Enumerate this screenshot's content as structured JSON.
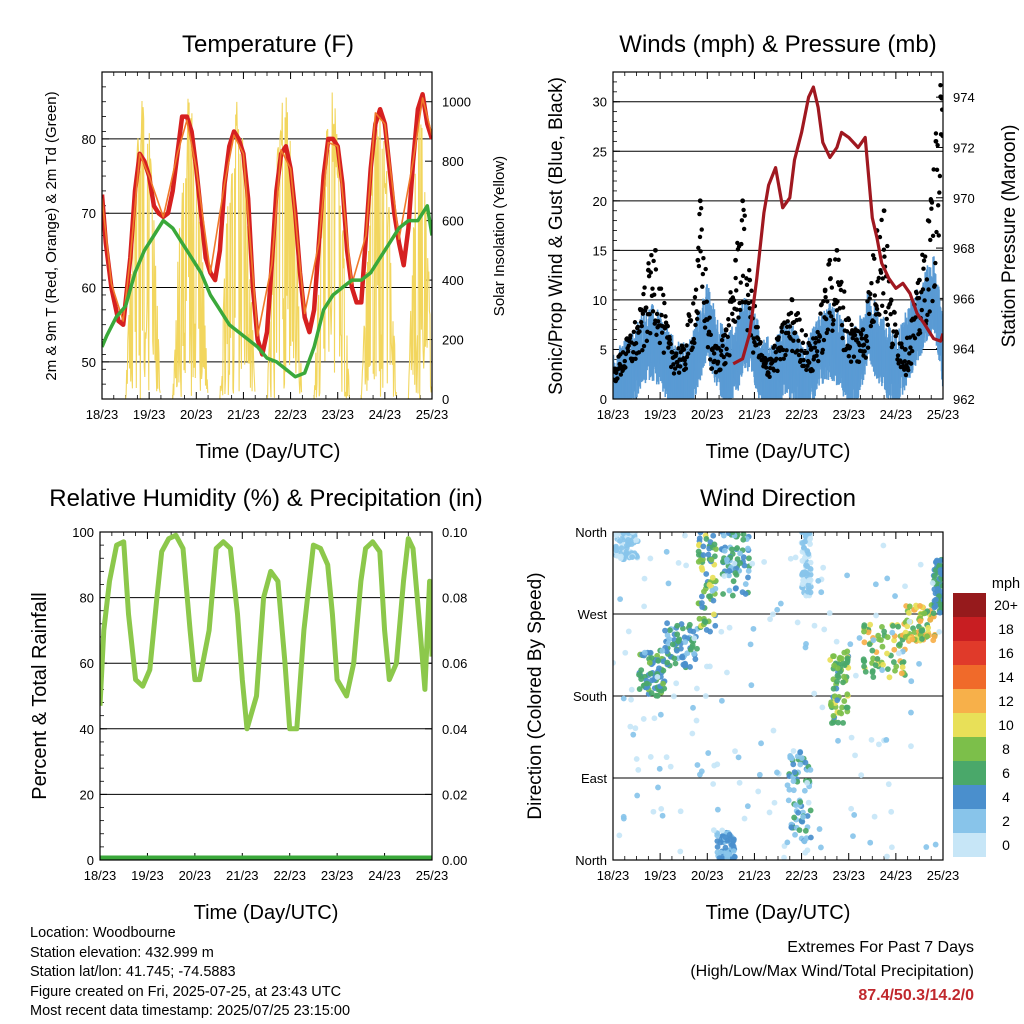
{
  "panels": {
    "temperature": {
      "title": "Temperature (F)",
      "xlabel": "Time (Day/UTC)",
      "ylabel_left": "2m & 9m T (Red, Orange) & 2m Td (Green)",
      "ylabel_right": "Solar Insolation (Yellow)"
    },
    "winds": {
      "title": "Winds (mph) & Pressure (mb)",
      "xlabel": "Time (Day/UTC)",
      "ylabel_left": "Sonic/Prop Wind & Gust (Blue, Black)",
      "ylabel_right": "Station Pressure (Maroon)"
    },
    "humidity": {
      "title": "Relative Humidity (%) & Precipitation (in)",
      "xlabel": "Time (Day/UTC)",
      "ylabel_left": "Percent & Total Rainfall"
    },
    "direction": {
      "title": "Wind Direction",
      "xlabel": "Time (Day/UTC)",
      "ylabel_left": "Direction (Colored By Speed)",
      "legend_title": "mph"
    }
  },
  "footer": {
    "location": "Location: Woodbourne",
    "elevation": "Station elevation: 432.999 m",
    "latlon": "Station lat/lon: 41.745; -74.5883",
    "created": "Figure created on Fri, 2025-07-25, at 23:43 UTC",
    "recent": "Most recent data timestamp: 2025/07/25 23:15:00",
    "extremes_title": "Extremes For Past 7 Days",
    "extremes_subtitle": "(High/Low/Max Wind/Total Precipitation)",
    "extremes_values": "87.4/50.3/14.2/0"
  },
  "chart_data": [
    {
      "id": "temperature",
      "type": "line",
      "x_ticks": [
        "18/23",
        "19/23",
        "20/23",
        "21/23",
        "22/23",
        "23/23",
        "24/23",
        "25/23"
      ],
      "xlim": [
        0,
        7
      ],
      "ylim_left": [
        45,
        89
      ],
      "yticks_left": [
        50,
        60,
        70,
        80
      ],
      "ylim_right": [
        0,
        1100
      ],
      "yticks_right": [
        0,
        200,
        400,
        600,
        800,
        1000
      ],
      "grid": true,
      "series": [
        {
          "axis": "left",
          "color": "#d62020",
          "width": 4.5,
          "x": [
            0,
            0.08,
            0.2,
            0.35,
            0.45,
            0.6,
            0.7,
            0.8,
            0.9,
            1.0,
            1.1,
            1.2,
            1.3,
            1.4,
            1.5,
            1.6,
            1.7,
            1.8,
            1.9,
            2.0,
            2.1,
            2.2,
            2.3,
            2.4,
            2.5,
            2.6,
            2.7,
            2.8,
            2.9,
            3.0,
            3.1,
            3.2,
            3.3,
            3.4,
            3.5,
            3.6,
            3.7,
            3.8,
            3.9,
            4.0,
            4.1,
            4.2,
            4.3,
            4.4,
            4.5,
            4.6,
            4.7,
            4.8,
            4.9,
            5.0,
            5.1,
            5.2,
            5.3,
            5.4,
            5.5,
            5.6,
            5.7,
            5.8,
            5.9,
            6.0,
            6.1,
            6.2,
            6.3,
            6.4,
            6.5,
            6.6,
            6.7,
            6.8,
            6.9,
            7.0
          ],
          "y": [
            72.5,
            66,
            60,
            55.5,
            55,
            64,
            73,
            78,
            77,
            75,
            71,
            70,
            69.5,
            70,
            73,
            78,
            83,
            83,
            81,
            76,
            70,
            64,
            62,
            61,
            65,
            74,
            79,
            81,
            80,
            78,
            72,
            60,
            53,
            51,
            54,
            63,
            73,
            78,
            79,
            76,
            70,
            62,
            56,
            54,
            57,
            66,
            75,
            80,
            80,
            79,
            74,
            65,
            60,
            58,
            58,
            67,
            76,
            82,
            84,
            82,
            76,
            70,
            66,
            63,
            68,
            77,
            84,
            86,
            82,
            80
          ]
        },
        {
          "axis": "left",
          "color": "#f07a2a",
          "width": 1.6,
          "x": [
            0,
            0.2,
            0.45,
            0.6,
            0.8,
            1.0,
            1.3,
            1.6,
            1.8,
            2.0,
            2.3,
            2.6,
            2.8,
            3.0,
            3.3,
            3.6,
            3.8,
            4.0,
            4.3,
            4.6,
            4.8,
            5.0,
            5.3,
            5.6,
            5.8,
            6.0,
            6.3,
            6.6,
            6.8,
            7.0
          ],
          "y": [
            72,
            60.5,
            55.5,
            64,
            78,
            75,
            69.5,
            78,
            82.5,
            76,
            62,
            74,
            80.5,
            78,
            53.5,
            63,
            78.5,
            76,
            56.5,
            66,
            79.5,
            79,
            60.5,
            67,
            83.5,
            82,
            66.5,
            77,
            85.5,
            80.5
          ]
        },
        {
          "axis": "left",
          "color": "#3aa83a",
          "width": 3.5,
          "x": [
            0,
            0.1,
            0.3,
            0.5,
            0.7,
            0.9,
            1.1,
            1.3,
            1.5,
            1.7,
            1.9,
            2.1,
            2.3,
            2.5,
            2.7,
            2.9,
            3.1,
            3.3,
            3.5,
            3.7,
            3.9,
            4.1,
            4.3,
            4.5,
            4.7,
            4.9,
            5.1,
            5.3,
            5.5,
            5.7,
            5.9,
            6.1,
            6.3,
            6.5,
            6.7,
            6.9,
            7.0
          ],
          "y": [
            52,
            53.5,
            56,
            57.5,
            62,
            65,
            67,
            69,
            68,
            66,
            64,
            62,
            59,
            57,
            55,
            54,
            53,
            52,
            50.5,
            50,
            49,
            48,
            48.5,
            52,
            57,
            59,
            60,
            61,
            61,
            62,
            64,
            66,
            68,
            69,
            69,
            71,
            67
          ]
        },
        {
          "axis": "right",
          "color": "#f2d65e",
          "width": 1.1,
          "kind": "insolation",
          "x": [
            0.55,
            1.25,
            0.75,
            1.1,
            1.55,
            2.25,
            1.75,
            2.05,
            2.55,
            3.2,
            2.75,
            3.05,
            3.55,
            4.25,
            3.75,
            4.1,
            4.55,
            5.25,
            4.75,
            5.1,
            5.55,
            6.25,
            5.75,
            6.1,
            6.55,
            7.0,
            6.75,
            6.95
          ],
          "y": [
            0,
            0,
            900,
            780,
            0,
            0,
            1020,
            960,
            0,
            0,
            1000,
            920,
            0,
            0,
            980,
            840,
            0,
            0,
            1050,
            700,
            0,
            0,
            950,
            820,
            0,
            0,
            1020,
            960
          ]
        }
      ]
    },
    {
      "id": "winds",
      "type": "scatter",
      "x_ticks": [
        "18/23",
        "19/23",
        "20/23",
        "21/23",
        "22/23",
        "23/23",
        "24/23",
        "25/23"
      ],
      "xlim": [
        0,
        7
      ],
      "ylim_left": [
        0,
        33
      ],
      "yticks_left": [
        0,
        5,
        10,
        15,
        20,
        25,
        30
      ],
      "ylim_right": [
        962,
        975
      ],
      "yticks_right": [
        962,
        964,
        966,
        968,
        970,
        972,
        974
      ],
      "grid": true,
      "series": [
        {
          "axis": "left",
          "color": "#000000",
          "kind": "gust-points",
          "x": [
            0,
            0.3,
            0.6,
            0.75,
            0.9,
            1.2,
            1.5,
            1.8,
            1.85,
            2.1,
            2.4,
            2.6,
            2.75,
            2.9,
            3.2,
            3.5,
            3.8,
            4.2,
            4.5,
            4.6,
            4.75,
            5.0,
            5.3,
            5.6,
            5.75,
            5.9,
            6.2,
            6.5,
            6.75,
            6.85,
            6.95
          ],
          "y": [
            3,
            6,
            9,
            13,
            15,
            6,
            5,
            14,
            20,
            5,
            7,
            14,
            20,
            12,
            4,
            6,
            10,
            5,
            11,
            14,
            15,
            8,
            7,
            17,
            19,
            10,
            5,
            12,
            20,
            26,
            30.5
          ]
        },
        {
          "axis": "left",
          "color": "#5a9bd4",
          "kind": "wind-band",
          "x": [
            0,
            0.2,
            0.4,
            0.6,
            0.8,
            1.0,
            1.2,
            1.4,
            1.6,
            1.8,
            2.0,
            2.2,
            2.4,
            2.6,
            2.8,
            3.0,
            3.2,
            3.4,
            3.6,
            3.8,
            4.0,
            4.2,
            4.4,
            4.6,
            4.8,
            5.0,
            5.2,
            5.4,
            5.6,
            5.8,
            6.0,
            6.2,
            6.4,
            6.6,
            6.8,
            7.0
          ],
          "y": [
            2,
            3,
            4,
            6,
            7,
            6,
            4,
            3,
            3,
            6,
            9,
            6,
            4,
            5,
            8,
            6,
            4,
            3,
            5,
            5,
            3,
            4,
            6,
            7,
            6,
            4,
            5,
            8,
            7,
            5,
            4,
            6,
            8,
            10,
            12,
            6
          ]
        },
        {
          "axis": "right",
          "color": "#a01820",
          "width": 3.2,
          "name": "pressure",
          "x": [
            2.55,
            2.75,
            2.9,
            3.05,
            3.2,
            3.3,
            3.45,
            3.6,
            3.75,
            3.85,
            4.0,
            4.15,
            4.25,
            4.35,
            4.45,
            4.6,
            4.75,
            4.85,
            5.0,
            5.2,
            5.35,
            5.5,
            5.6,
            5.7,
            5.85,
            6.0,
            6.15,
            6.3,
            6.45,
            6.6,
            6.8,
            6.95,
            7.0
          ],
          "y": [
            963.4,
            963.6,
            964.6,
            966.8,
            969.4,
            970.5,
            971.2,
            969.6,
            970.0,
            971.5,
            972.6,
            974.0,
            974.4,
            973.6,
            972.2,
            971.6,
            972.0,
            972.6,
            972.4,
            972.0,
            972.4,
            969.2,
            968.4,
            967.4,
            966.8,
            966.4,
            966.6,
            966.2,
            965.4,
            965.0,
            964.4,
            964.3,
            964.6
          ]
        }
      ]
    },
    {
      "id": "humidity",
      "type": "line",
      "x_ticks": [
        "18/23",
        "19/23",
        "20/23",
        "21/23",
        "22/23",
        "23/23",
        "24/23",
        "25/23"
      ],
      "xlim": [
        0,
        7
      ],
      "ylim_left": [
        0,
        100
      ],
      "yticks_left": [
        0,
        20,
        40,
        60,
        80,
        100
      ],
      "ylim_right": [
        0,
        0.1
      ],
      "yticks_right": [
        0.0,
        0.02,
        0.04,
        0.06,
        0.08,
        0.1
      ],
      "yticks_right_labels": [
        "0.00",
        "0.02",
        "0.04",
        "0.06",
        "0.08",
        "0.10"
      ],
      "grid": true,
      "series": [
        {
          "axis": "left",
          "color": "#8cc84b",
          "width": 5,
          "x": [
            0,
            0.08,
            0.2,
            0.35,
            0.5,
            0.6,
            0.75,
            0.9,
            1.05,
            1.2,
            1.3,
            1.45,
            1.6,
            1.75,
            1.9,
            2.0,
            2.1,
            2.3,
            2.45,
            2.6,
            2.75,
            2.9,
            3.0,
            3.1,
            3.3,
            3.45,
            3.6,
            3.75,
            3.9,
            4.0,
            4.15,
            4.3,
            4.5,
            4.65,
            4.8,
            4.9,
            5.0,
            5.2,
            5.35,
            5.5,
            5.6,
            5.75,
            5.9,
            6.0,
            6.1,
            6.25,
            6.4,
            6.5,
            6.6,
            6.75,
            6.85,
            6.95,
            7.0
          ],
          "y": [
            47,
            70,
            85,
            96,
            97,
            75,
            55,
            53,
            58,
            80,
            94,
            98,
            99,
            95,
            70,
            55,
            55,
            70,
            95,
            97,
            95,
            75,
            55,
            40,
            50,
            80,
            88,
            85,
            60,
            40,
            40,
            70,
            96,
            95,
            90,
            75,
            55,
            50,
            60,
            85,
            95,
            97,
            94,
            70,
            55,
            60,
            85,
            98,
            95,
            70,
            52,
            85,
            62
          ]
        },
        {
          "axis": "left",
          "color": "#3aa83a",
          "width": 9,
          "name": "precip",
          "x": [
            0,
            7
          ],
          "y": [
            0,
            0
          ]
        }
      ]
    },
    {
      "id": "direction",
      "type": "scatter",
      "x_ticks": [
        "18/23",
        "19/23",
        "20/23",
        "21/23",
        "22/23",
        "23/23",
        "24/23",
        "25/23"
      ],
      "xlim": [
        0,
        7
      ],
      "ylim_left": [
        0,
        360
      ],
      "yticks_left": [
        0,
        90,
        180,
        270,
        360
      ],
      "ytick_labels": [
        "North",
        "East",
        "South",
        "West",
        "North"
      ],
      "grid": true,
      "colorbar": {
        "labels": [
          "0",
          "2",
          "4",
          "6",
          "8",
          "10",
          "12",
          "14",
          "16",
          "18",
          "20+"
        ],
        "colors": [
          "#c7e6f7",
          "#88c4ea",
          "#4a8fcd",
          "#4aa86a",
          "#7cbf4a",
          "#e8e058",
          "#f7b04a",
          "#f06a2a",
          "#e03a2a",
          "#c81e22",
          "#961a1c"
        ]
      },
      "clusters": [
        {
          "x": [
            0.05,
            0.55
          ],
          "y": [
            330,
            360
          ],
          "speed": [
            1,
            4
          ]
        },
        {
          "x": [
            0.55,
            1.1
          ],
          "y": [
            180,
            230
          ],
          "speed": [
            4,
            9
          ]
        },
        {
          "x": [
            1.1,
            1.8
          ],
          "y": [
            210,
            260
          ],
          "speed": [
            3,
            8
          ]
        },
        {
          "x": [
            1.8,
            2.2
          ],
          "y": [
            250,
            360
          ],
          "speed": [
            4,
            11
          ]
        },
        {
          "x": [
            2.3,
            2.9
          ],
          "y": [
            290,
            360
          ],
          "speed": [
            3,
            8
          ]
        },
        {
          "x": [
            2.2,
            2.6
          ],
          "y": [
            0,
            30
          ],
          "speed": [
            3,
            6
          ]
        },
        {
          "x": [
            3.7,
            4.2
          ],
          "y": [
            20,
            120
          ],
          "speed": [
            2,
            7
          ]
        },
        {
          "x": [
            4.0,
            4.2
          ],
          "y": [
            290,
            360
          ],
          "speed": [
            1,
            4
          ]
        },
        {
          "x": [
            4.6,
            5.0
          ],
          "y": [
            150,
            230
          ],
          "speed": [
            5,
            11
          ]
        },
        {
          "x": [
            5.3,
            6.2
          ],
          "y": [
            200,
            260
          ],
          "speed": [
            6,
            13
          ]
        },
        {
          "x": [
            6.2,
            6.85
          ],
          "y": [
            240,
            280
          ],
          "speed": [
            6,
            14
          ]
        },
        {
          "x": [
            6.8,
            7.0
          ],
          "y": [
            270,
            330
          ],
          "speed": [
            4,
            8
          ]
        },
        {
          "x": [
            0.0,
            7.0
          ],
          "y": [
            0,
            360
          ],
          "speed": [
            0,
            4
          ],
          "sparse": true
        }
      ]
    }
  ]
}
